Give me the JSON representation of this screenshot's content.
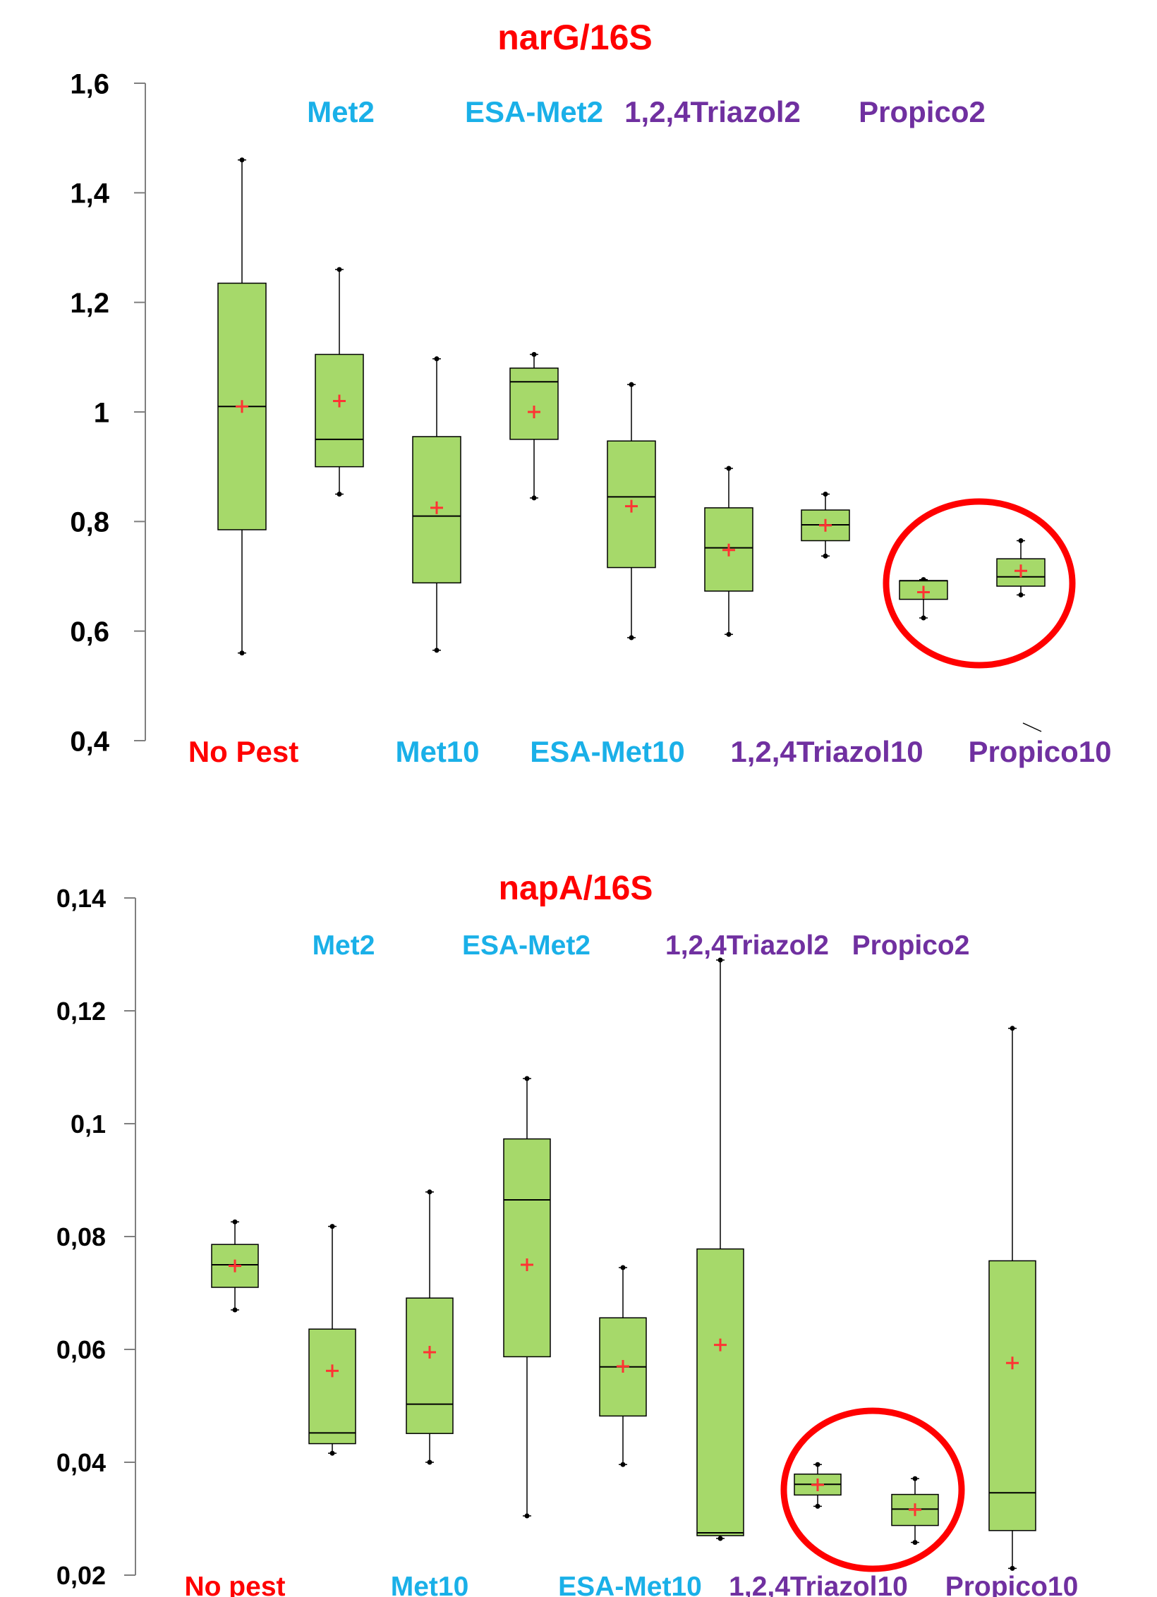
{
  "colors": {
    "box_fill": "#a6d96a",
    "mean_marker": "#ff3333",
    "title": "#ff0000",
    "control_label": "#ff0000",
    "metolachlor_label": "#1ab0e8",
    "triazole_label": "#7030a0",
    "highlight_circle": "#ff0000"
  },
  "chart_data": [
    {
      "type": "box",
      "title": "narG/16S",
      "yticks": [
        "1,6",
        "1,4",
        "1,2",
        "1",
        "0,8",
        "0,6",
        "0,4"
      ],
      "ylim": [
        0.4,
        1.6
      ],
      "top_labels": [
        {
          "text": "Met2",
          "color": "metolachlor_label"
        },
        {
          "text": "ESA-Met2",
          "color": "metolachlor_label"
        },
        {
          "text": "1,2,4Triazol2",
          "color": "triazole_label"
        },
        {
          "text": "Propico2",
          "color": "triazole_label"
        }
      ],
      "bottom_labels": [
        {
          "text": "No Pest",
          "color": "control_label"
        },
        {
          "text": "Met10",
          "color": "metolachlor_label"
        },
        {
          "text": "ESA-Met10",
          "color": "metolachlor_label"
        },
        {
          "text": "1,2,4Triazol10",
          "color": "triazole_label"
        },
        {
          "text": "Propico10",
          "color": "triazole_label"
        }
      ],
      "boxes": [
        {
          "min": 0.56,
          "q1": 0.785,
          "median": 1.01,
          "q3": 1.235,
          "max": 1.46,
          "mean": 1.01
        },
        {
          "min": 0.85,
          "q1": 0.9,
          "median": 0.95,
          "q3": 1.105,
          "max": 1.26,
          "mean": 1.02
        },
        {
          "min": 0.565,
          "q1": 0.688,
          "median": 0.81,
          "q3": 0.955,
          "max": 1.097,
          "mean": 0.825
        },
        {
          "min": 0.843,
          "q1": 0.95,
          "median": 1.055,
          "q3": 1.08,
          "max": 1.105,
          "mean": 1.0
        },
        {
          "min": 0.588,
          "q1": 0.716,
          "median": 0.845,
          "q3": 0.947,
          "max": 1.05,
          "mean": 0.828
        },
        {
          "min": 0.594,
          "q1": 0.673,
          "median": 0.752,
          "q3": 0.825,
          "max": 0.897,
          "mean": 0.748
        },
        {
          "min": 0.737,
          "q1": 0.765,
          "median": 0.794,
          "q3": 0.821,
          "max": 0.85,
          "mean": 0.793
        },
        {
          "min": 0.624,
          "q1": 0.658,
          "median": 0.692,
          "q3": 0.692,
          "max": 0.694,
          "mean": 0.671
        },
        {
          "min": 0.666,
          "q1": 0.682,
          "median": 0.699,
          "q3": 0.732,
          "max": 0.765,
          "mean": 0.71
        }
      ],
      "highlight": {
        "from_box": 7,
        "to_box": 8
      }
    },
    {
      "type": "box",
      "title": "napA/16S",
      "yticks": [
        "0,14",
        "0,12",
        "0,1",
        "0,08",
        "0,06",
        "0,04",
        "0,02"
      ],
      "ylim": [
        0.02,
        0.14
      ],
      "top_labels": [
        {
          "text": "Met2",
          "color": "metolachlor_label"
        },
        {
          "text": "ESA-Met2",
          "color": "metolachlor_label"
        },
        {
          "text": "1,2,4Triazol2",
          "color": "triazole_label"
        },
        {
          "text": "Propico2",
          "color": "triazole_label"
        }
      ],
      "bottom_labels": [
        {
          "text": "No pest",
          "color": "control_label"
        },
        {
          "text": "Met10",
          "color": "metolachlor_label"
        },
        {
          "text": "ESA-Met10",
          "color": "metolachlor_label"
        },
        {
          "text": "1,2,4Triazol10",
          "color": "triazole_label"
        },
        {
          "text": "Propico10",
          "color": "triazole_label"
        }
      ],
      "boxes": [
        {
          "min": 0.067,
          "q1": 0.071,
          "median": 0.075,
          "q3": 0.0786,
          "max": 0.0826,
          "mean": 0.0748
        },
        {
          "min": 0.0416,
          "q1": 0.0433,
          "median": 0.0452,
          "q3": 0.0636,
          "max": 0.0818,
          "mean": 0.0562
        },
        {
          "min": 0.04,
          "q1": 0.0451,
          "median": 0.0503,
          "q3": 0.0691,
          "max": 0.0879,
          "mean": 0.0595
        },
        {
          "min": 0.0305,
          "q1": 0.0587,
          "median": 0.0865,
          "q3": 0.0973,
          "max": 0.108,
          "mean": 0.075
        },
        {
          "min": 0.0396,
          "q1": 0.0482,
          "median": 0.0569,
          "q3": 0.0656,
          "max": 0.0745,
          "mean": 0.057
        },
        {
          "min": 0.0265,
          "q1": 0.027,
          "median": 0.0275,
          "q3": 0.0778,
          "max": 0.129,
          "mean": 0.0608
        },
        {
          "min": 0.0322,
          "q1": 0.0342,
          "median": 0.0361,
          "q3": 0.0379,
          "max": 0.0396,
          "mean": 0.036
        },
        {
          "min": 0.0258,
          "q1": 0.0288,
          "median": 0.0317,
          "q3": 0.0343,
          "max": 0.0371,
          "mean": 0.0316
        },
        {
          "min": 0.0212,
          "q1": 0.0279,
          "median": 0.0346,
          "q3": 0.0757,
          "max": 0.1169,
          "mean": 0.0576
        }
      ],
      "highlight": {
        "from_box": 6,
        "to_box": 7
      }
    }
  ]
}
